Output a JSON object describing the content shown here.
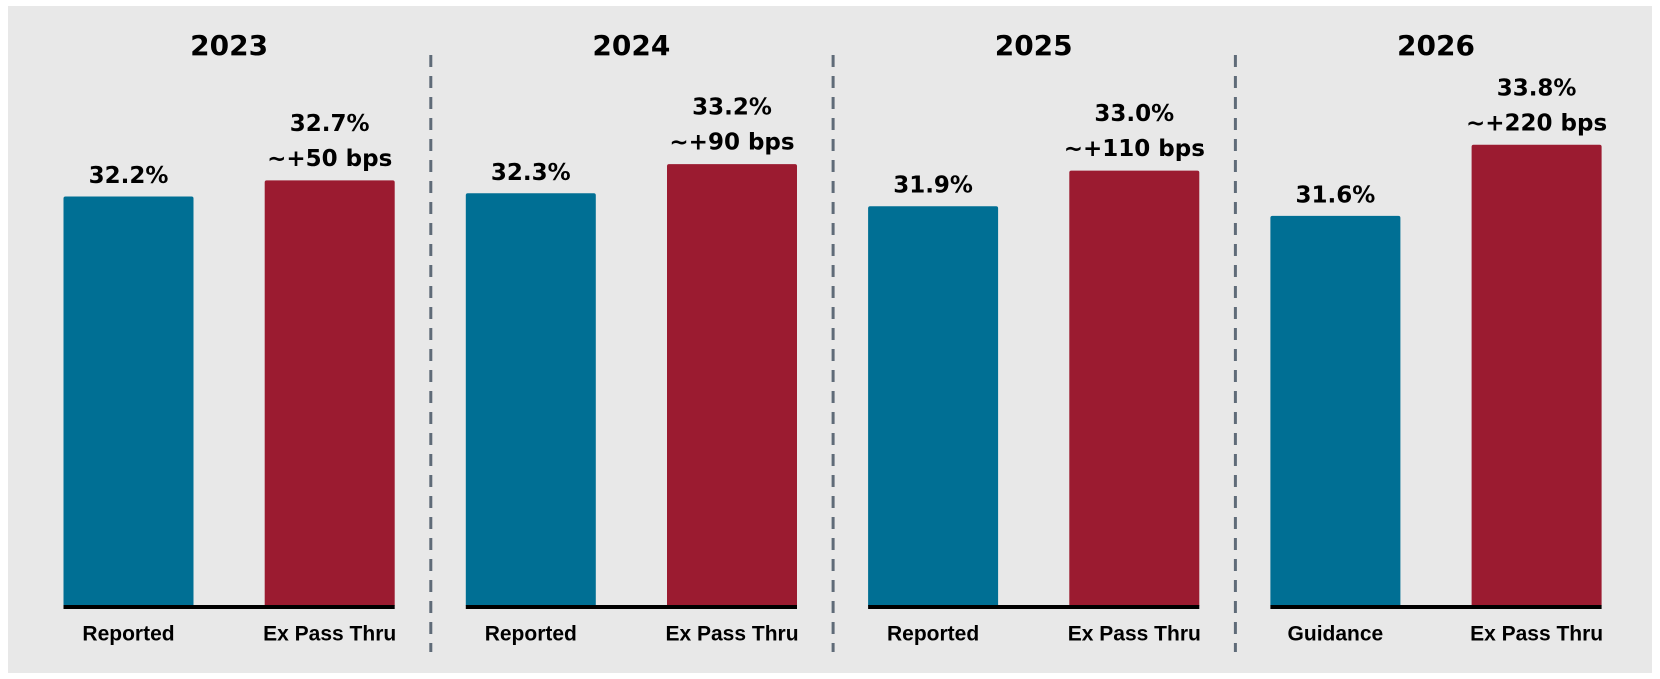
{
  "chart_data": {
    "type": "bar",
    "ylim": [
      19.5,
      35
    ],
    "colors": [
      "#006f94",
      "#9b1b30"
    ],
    "groups": [
      {
        "title": "2023",
        "categories": [
          "Reported",
          "Ex Pass Thru"
        ],
        "values": [
          32.2,
          32.7
        ],
        "value_labels": [
          "32.2%",
          "32.7%"
        ],
        "annotation": "~+50 bps"
      },
      {
        "title": "2024",
        "categories": [
          "Reported",
          "Ex Pass Thru"
        ],
        "values": [
          32.3,
          33.2
        ],
        "value_labels": [
          "32.3%",
          "33.2%"
        ],
        "annotation": "~+90 bps"
      },
      {
        "title": "2025",
        "categories": [
          "Reported",
          "Ex Pass Thru"
        ],
        "values": [
          31.9,
          33.0
        ],
        "value_labels": [
          "31.9%",
          "33.0%"
        ],
        "annotation": "~+110 bps"
      },
      {
        "title": "2026",
        "categories": [
          "Guidance",
          "Ex Pass Thru"
        ],
        "values": [
          31.6,
          33.8
        ],
        "value_labels": [
          "31.6%",
          "33.8%"
        ],
        "annotation": "~+220 bps"
      }
    ]
  }
}
